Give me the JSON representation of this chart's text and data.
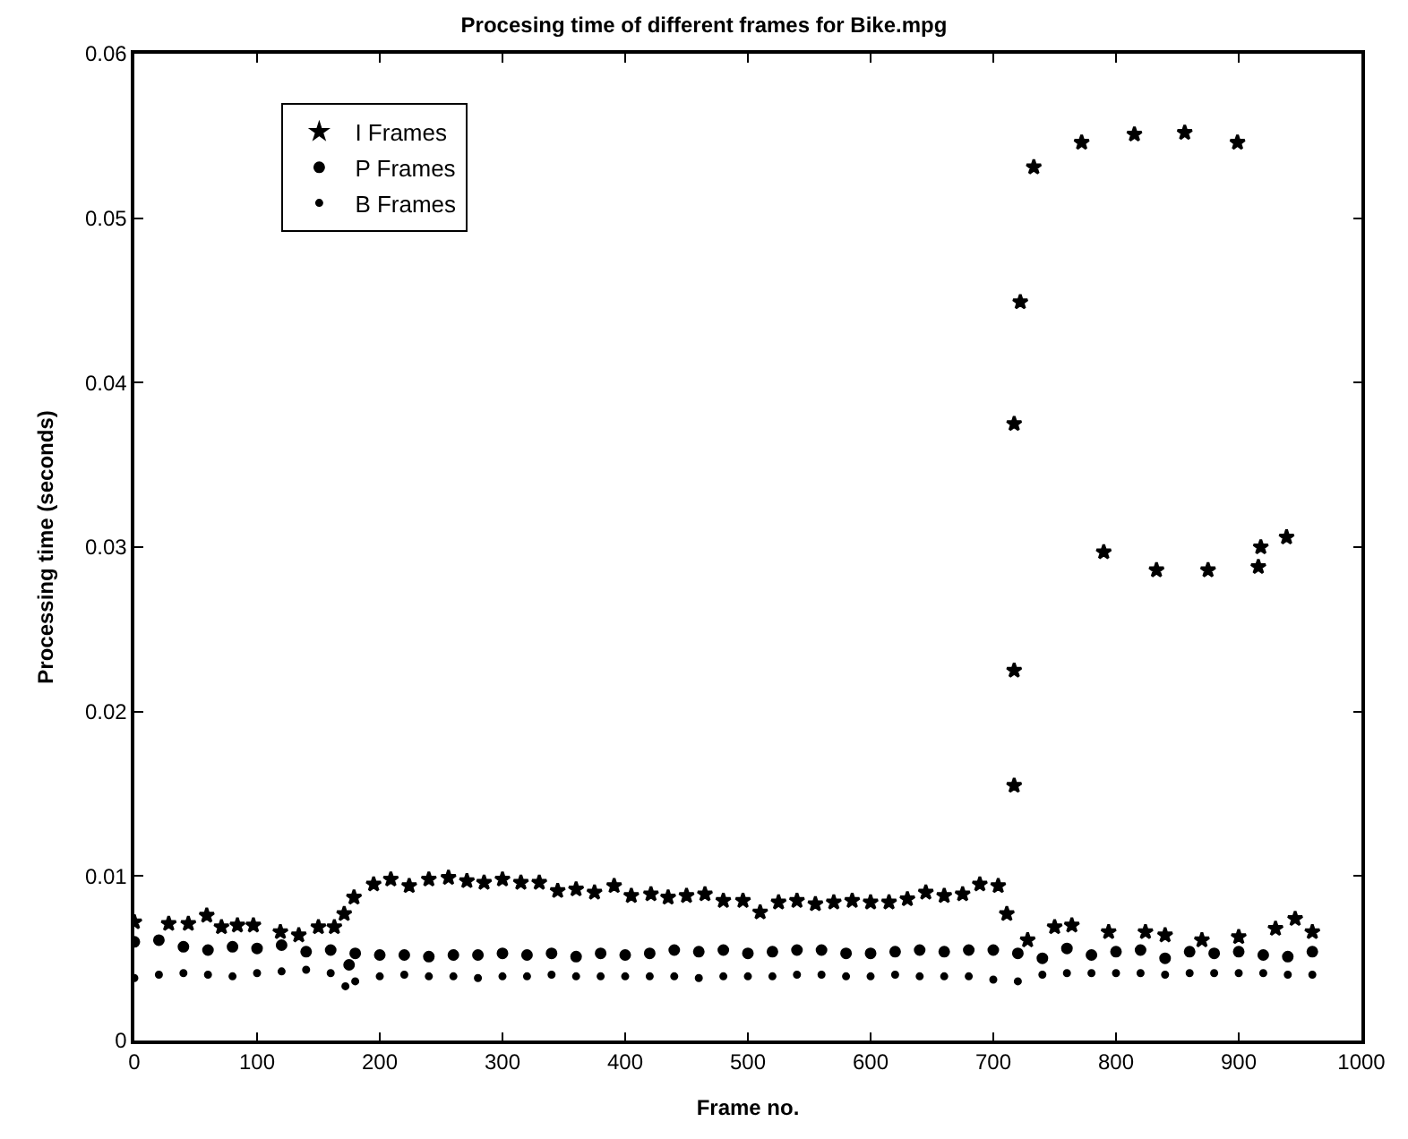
{
  "chart_data": {
    "type": "scatter",
    "title": "Procesing time of different frames for Bike.mpg",
    "xlabel": "Frame no.",
    "ylabel": "Processing time (seconds)",
    "xlim": [
      0,
      1000
    ],
    "xticks": [
      0,
      100,
      200,
      300,
      400,
      500,
      600,
      700,
      800,
      900,
      1000
    ],
    "ylim": [
      0,
      0.06
    ],
    "yticks": [
      0,
      0.01,
      0.02,
      0.03,
      0.04,
      0.05,
      0.06
    ],
    "legend": "top left",
    "series": [
      {
        "name": "I Frames",
        "color": "#000000",
        "marker": "star",
        "x": [
          0,
          28,
          44,
          59,
          71,
          84,
          97,
          119,
          134,
          150,
          163,
          171,
          179,
          195,
          209,
          224,
          240,
          256,
          271,
          285,
          300,
          315,
          330,
          345,
          360,
          375,
          391,
          405,
          421,
          435,
          450,
          465,
          480,
          496,
          510,
          525,
          540,
          555,
          570,
          585,
          600,
          615,
          630,
          645,
          660,
          675,
          689,
          704,
          711,
          717,
          717,
          717,
          722,
          728,
          733,
          750,
          764,
          772,
          790,
          794,
          815,
          824,
          833,
          840,
          856,
          870,
          875,
          899,
          900,
          916,
          918,
          930,
          939,
          946,
          960
        ],
        "values": [
          0.0072,
          0.0071,
          0.0071,
          0.0076,
          0.0069,
          0.007,
          0.007,
          0.0066,
          0.0064,
          0.0069,
          0.0069,
          0.0077,
          0.0087,
          0.0095,
          0.0098,
          0.0094,
          0.0098,
          0.0099,
          0.0097,
          0.0096,
          0.0098,
          0.0096,
          0.0096,
          0.0091,
          0.0092,
          0.009,
          0.0094,
          0.0088,
          0.0089,
          0.0087,
          0.0088,
          0.0089,
          0.0085,
          0.0085,
          0.0078,
          0.0084,
          0.0085,
          0.0083,
          0.0084,
          0.0085,
          0.0084,
          0.0084,
          0.0086,
          0.009,
          0.0088,
          0.0089,
          0.0095,
          0.0094,
          0.0077,
          0.0375,
          0.0225,
          0.0155,
          0.0449,
          0.0061,
          0.0531,
          0.0069,
          0.007,
          0.0546,
          0.0297,
          0.0066,
          0.0551,
          0.0066,
          0.0286,
          0.0064,
          0.0552,
          0.0061,
          0.0286,
          0.0546,
          0.0063,
          0.0288,
          0.03,
          0.0068,
          0.0306,
          0.0074,
          0.0066
        ]
      },
      {
        "name": "P Frames",
        "color": "#000000",
        "marker": "circle",
        "x": [
          0,
          20,
          40,
          60,
          80,
          100,
          120,
          140,
          160,
          175,
          180,
          200,
          220,
          240,
          260,
          280,
          300,
          320,
          340,
          360,
          380,
          400,
          420,
          440,
          460,
          480,
          500,
          520,
          540,
          560,
          580,
          600,
          620,
          640,
          660,
          680,
          700,
          720,
          740,
          760,
          780,
          800,
          820,
          840,
          860,
          880,
          900,
          920,
          940,
          960
        ],
        "values": [
          0.006,
          0.0061,
          0.0057,
          0.0055,
          0.0057,
          0.0056,
          0.0058,
          0.0054,
          0.0055,
          0.0046,
          0.0053,
          0.0052,
          0.0052,
          0.0051,
          0.0052,
          0.0052,
          0.0053,
          0.0052,
          0.0053,
          0.0051,
          0.0053,
          0.0052,
          0.0053,
          0.0055,
          0.0054,
          0.0055,
          0.0053,
          0.0054,
          0.0055,
          0.0055,
          0.0053,
          0.0053,
          0.0054,
          0.0055,
          0.0054,
          0.0055,
          0.0055,
          0.0053,
          0.005,
          0.0056,
          0.0052,
          0.0054,
          0.0055,
          0.005,
          0.0054,
          0.0053,
          0.0054,
          0.0052,
          0.0051,
          0.0054
        ]
      },
      {
        "name": "B Frames",
        "color": "#000000",
        "marker": "circle",
        "x": [
          0,
          20,
          40,
          60,
          80,
          100,
          120,
          140,
          160,
          172,
          180,
          200,
          220,
          240,
          260,
          280,
          300,
          320,
          340,
          360,
          380,
          400,
          420,
          440,
          460,
          480,
          500,
          520,
          540,
          560,
          580,
          600,
          620,
          640,
          660,
          680,
          700,
          720,
          740,
          760,
          780,
          800,
          820,
          840,
          860,
          880,
          900,
          920,
          940,
          960
        ],
        "values": [
          0.0038,
          0.004,
          0.0041,
          0.004,
          0.0039,
          0.0041,
          0.0042,
          0.0043,
          0.0041,
          0.0033,
          0.0036,
          0.0039,
          0.004,
          0.0039,
          0.0039,
          0.0038,
          0.0039,
          0.0039,
          0.004,
          0.0039,
          0.0039,
          0.0039,
          0.0039,
          0.0039,
          0.0038,
          0.0039,
          0.0039,
          0.0039,
          0.004,
          0.004,
          0.0039,
          0.0039,
          0.004,
          0.0039,
          0.0039,
          0.0039,
          0.0037,
          0.0036,
          0.004,
          0.0041,
          0.0041,
          0.0041,
          0.0041,
          0.004,
          0.0041,
          0.0041,
          0.0041,
          0.0041,
          0.004,
          0.004
        ]
      }
    ]
  }
}
